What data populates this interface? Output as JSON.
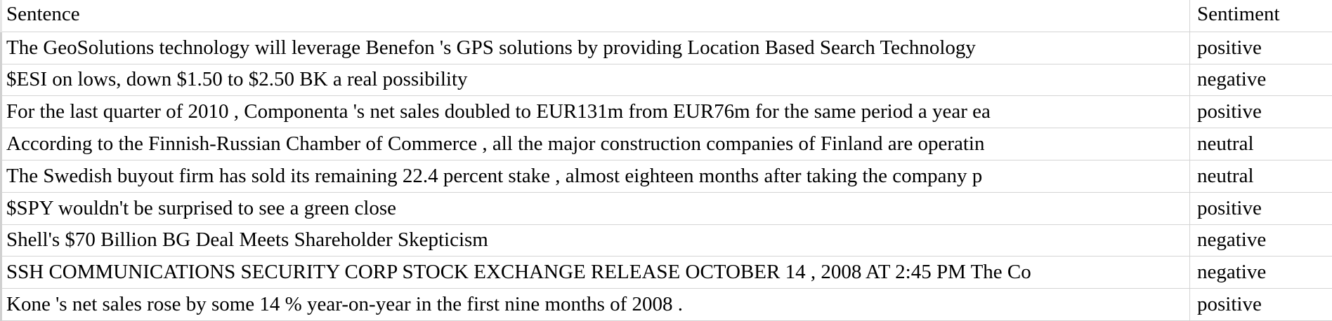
{
  "table": {
    "headers": {
      "sentence": "Sentence",
      "sentiment": "Sentiment"
    },
    "rows": [
      {
        "sentence": "The GeoSolutions technology will leverage Benefon 's GPS solutions by providing Location Based Search Technology",
        "sentiment": "positive"
      },
      {
        "sentence": "$ESI on lows, down $1.50 to $2.50 BK a real possibility",
        "sentiment": "negative"
      },
      {
        "sentence": "For the last quarter of 2010 , Componenta 's net sales doubled to EUR131m from EUR76m for the same period a year ea",
        "sentiment": "positive"
      },
      {
        "sentence": "According to the Finnish-Russian Chamber of Commerce , all the major construction companies of Finland are operatin",
        "sentiment": "neutral"
      },
      {
        "sentence": "The Swedish buyout firm has sold its remaining 22.4 percent stake , almost eighteen months after taking the company p",
        "sentiment": "neutral"
      },
      {
        "sentence": "$SPY wouldn't be surprised to see a green close",
        "sentiment": "positive"
      },
      {
        "sentence": "Shell's $70 Billion BG Deal Meets Shareholder Skepticism",
        "sentiment": "negative"
      },
      {
        "sentence": "SSH COMMUNICATIONS SECURITY CORP STOCK EXCHANGE RELEASE OCTOBER 14 , 2008 AT 2:45 PM The Co",
        "sentiment": "negative"
      },
      {
        "sentence": "Kone 's net sales rose by some 14 % year-on-year in the first nine months of 2008 .",
        "sentiment": "positive"
      }
    ]
  }
}
